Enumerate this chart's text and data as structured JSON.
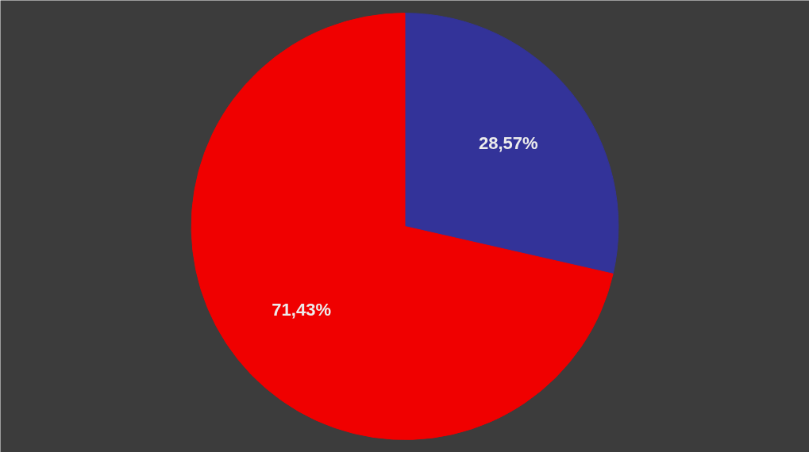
{
  "chart_data": {
    "type": "pie",
    "categories": [
      null,
      null
    ],
    "values": [
      28.57,
      71.43
    ],
    "colors": [
      "#333399",
      "#f00000"
    ],
    "value_labels": [
      "28,57%",
      "71,43%"
    ]
  }
}
